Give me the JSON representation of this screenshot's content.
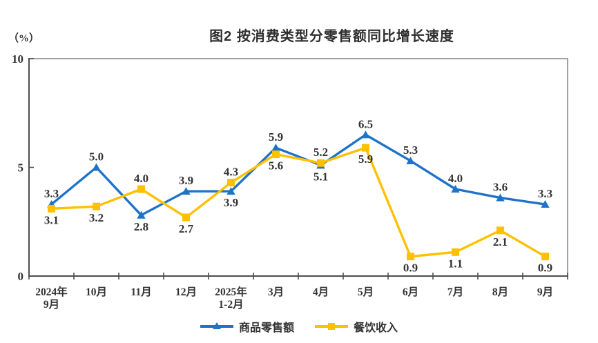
{
  "page": {
    "background": "#ffffff"
  },
  "title": "图2 按消费类型分零售额同比增长速度",
  "unit_label": "（%）",
  "colors": {
    "goods_blue": "#1E73C8",
    "catering_yellow": "#FFC000",
    "label_text": "#333333",
    "plot_border": "#8c8c8c",
    "axis_line": "#4d4d4d"
  },
  "chart_data": {
    "type": "line",
    "title": "图2 按消费类型分零售额同比增长速度",
    "ylabel": "（%）",
    "ylim": [
      0,
      10
    ],
    "yticks": [
      0,
      5,
      10
    ],
    "grid": false,
    "legend_position": "bottom",
    "categories": [
      [
        "2024年",
        "9月"
      ],
      [
        "10月"
      ],
      [
        "11月"
      ],
      [
        "12月"
      ],
      [
        "2025年",
        "1-2月"
      ],
      [
        "3月"
      ],
      [
        "4月"
      ],
      [
        "5月"
      ],
      [
        "6月"
      ],
      [
        "7月"
      ],
      [
        "8月"
      ],
      [
        "9月"
      ]
    ],
    "series": [
      {
        "key": "goods",
        "name": "商品零售额",
        "color": "#1E73C8",
        "marker": "triangle",
        "values": [
          3.3,
          5.0,
          2.8,
          3.9,
          3.9,
          5.9,
          5.1,
          6.5,
          5.3,
          4.0,
          3.6,
          3.3
        ],
        "label_pos": [
          "above",
          "above",
          "below",
          "above",
          "below",
          "above",
          "below",
          "above",
          "above",
          "above",
          "above",
          "above"
        ]
      },
      {
        "key": "catering",
        "name": "餐饮收入",
        "color": "#FFC000",
        "marker": "square",
        "values": [
          3.1,
          3.2,
          4.0,
          2.7,
          4.3,
          5.6,
          5.2,
          5.9,
          0.9,
          1.1,
          2.1,
          0.9
        ],
        "label_pos": [
          "below",
          "below",
          "above",
          "below",
          "above",
          "below",
          "above",
          "below",
          "below",
          "below",
          "below",
          "below"
        ]
      }
    ]
  }
}
